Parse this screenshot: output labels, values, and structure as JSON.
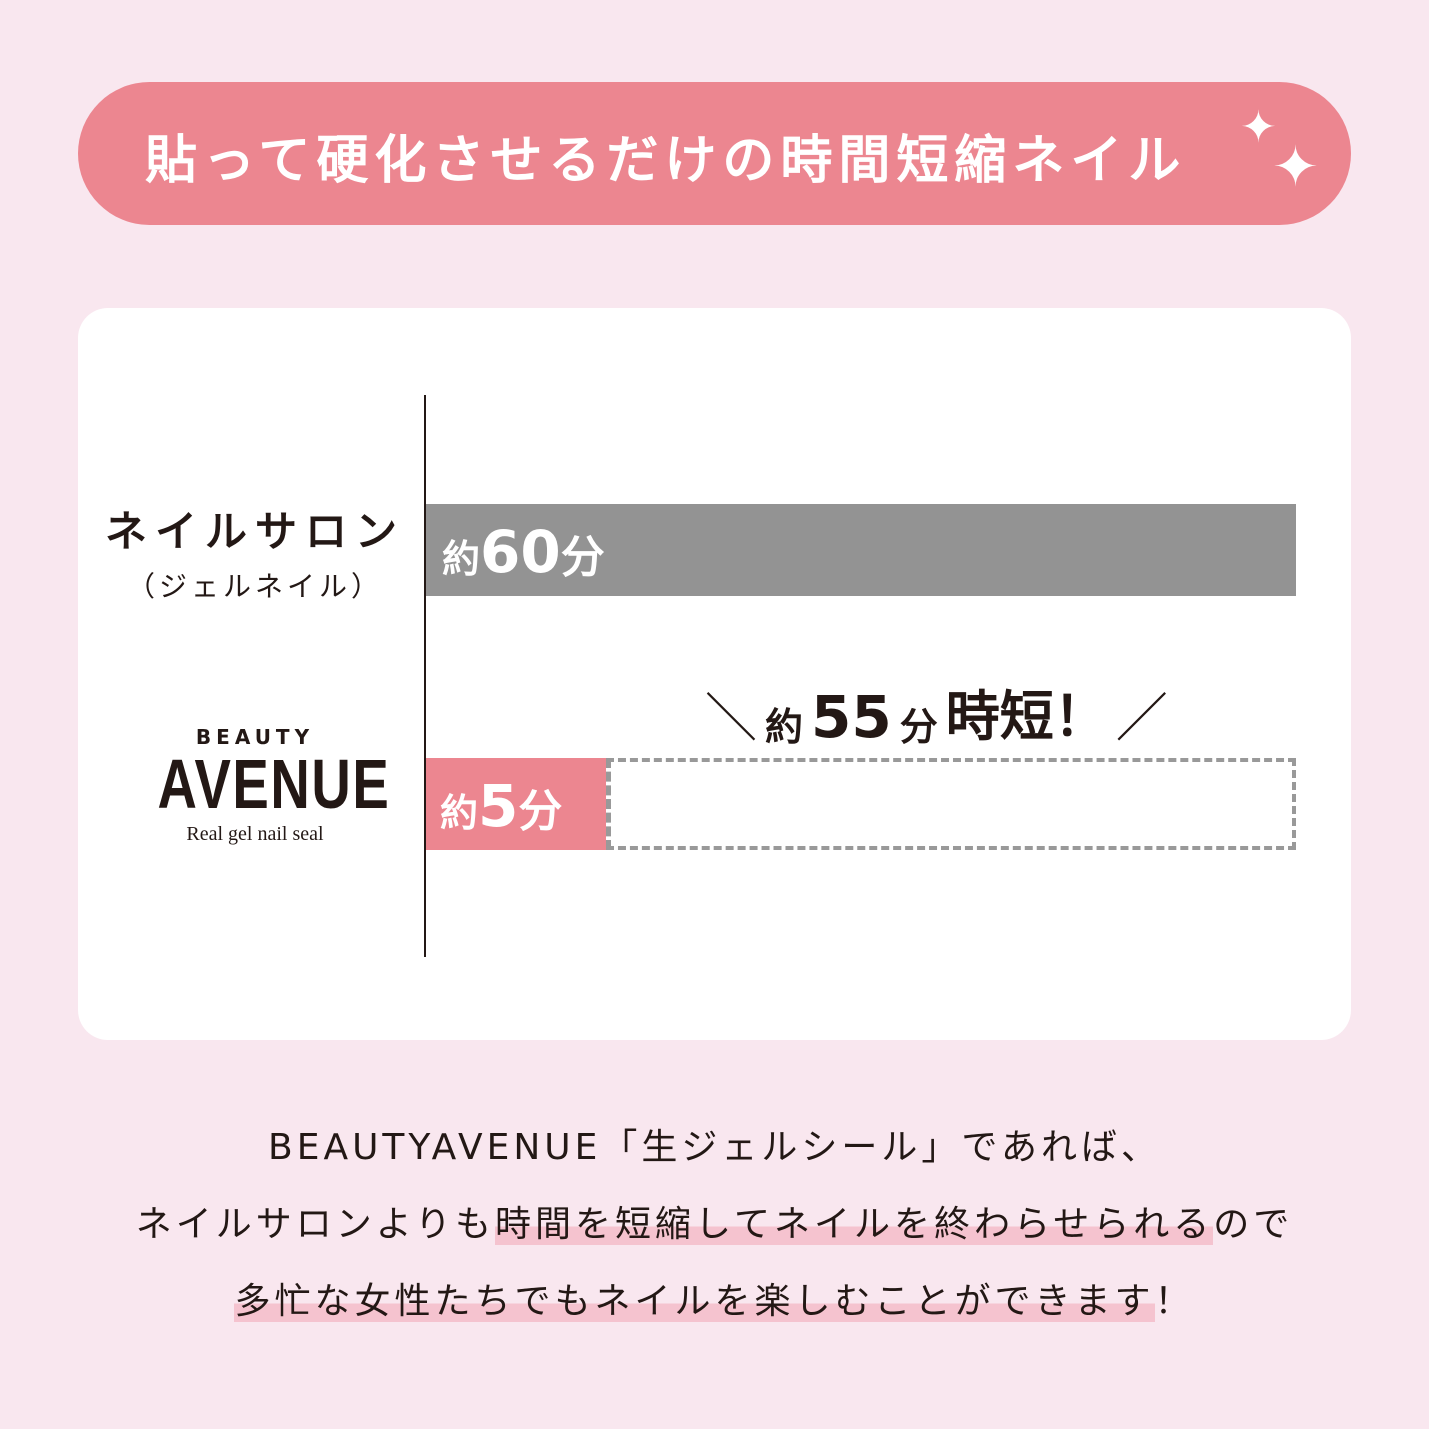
{
  "header": {
    "title": "貼って硬化させるだけの時間短縮ネイル"
  },
  "chart_data": {
    "type": "bar",
    "orientation": "horizontal",
    "categories": [
      "ネイルサロン（ジェルネイル）",
      "BEAUTY AVENUE Real gel nail seal"
    ],
    "values": [
      60,
      5
    ],
    "unit": "分",
    "data_labels": [
      {
        "prefix": "約",
        "value": "60",
        "unit": "分"
      },
      {
        "prefix": "約",
        "value": "5",
        "unit": "分"
      }
    ],
    "colors": [
      "#939393",
      "#ec8690"
    ],
    "annotation": {
      "prefix": "約",
      "value": "55",
      "unit": "分",
      "text": "時短！"
    }
  },
  "categories": {
    "salon": {
      "main": "ネイルサロン",
      "sub": "（ジェルネイル）"
    },
    "brand": {
      "top": "BEAUTY",
      "main": "AVENUE",
      "tagline": "Real gel nail seal"
    }
  },
  "description": {
    "line1": "BEAUTYAVENUE「生ジェルシール」であれば、",
    "line2_a": "ネイルサロンよりも",
    "line2_b": "時間を短縮してネイルを終わらせられる",
    "line2_c": "ので",
    "line3_a": "多忙な女性たちでもネイルを楽しむことができます",
    "line3_b": "！"
  },
  "colors": {
    "background": "#f9e7ef",
    "accent": "#ec8690",
    "bar_gray": "#939393",
    "highlight": "#f5c3cf"
  }
}
